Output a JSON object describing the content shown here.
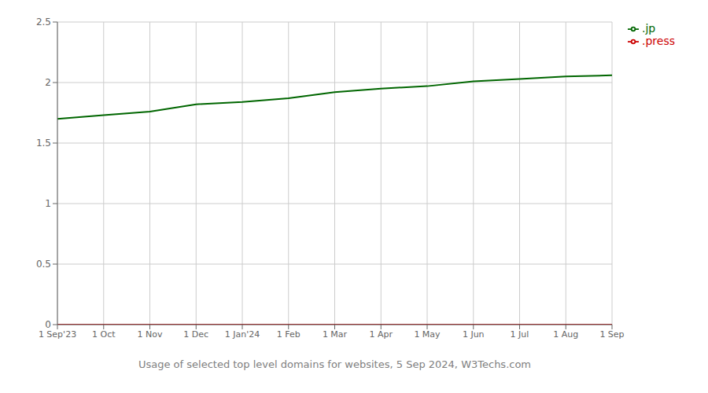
{
  "chart_data": {
    "type": "line",
    "xlabel": "Usage of selected top level domains for websites, 5 Sep 2024, W3Techs.com",
    "categories": [
      "1 Sep'23",
      "1 Oct",
      "1 Nov",
      "1 Dec",
      "1 Jan'24",
      "1 Feb",
      "1 Mar",
      "1 Apr",
      "1 May",
      "1 Jun",
      "1 Jul",
      "1 Aug",
      "1 Sep"
    ],
    "series": [
      {
        "name": ".jp",
        "color": "#006600",
        "values": [
          1.7,
          1.73,
          1.76,
          1.82,
          1.84,
          1.87,
          1.92,
          1.95,
          1.97,
          2.01,
          2.03,
          2.05,
          2.06
        ]
      },
      {
        "name": ".press",
        "color": "#cc0000",
        "values": [
          0.0,
          0.0,
          0.0,
          0.0,
          0.0,
          0.0,
          0.0,
          0.0,
          0.0,
          0.0,
          0.0,
          0.0,
          0.0
        ]
      }
    ],
    "ylim": [
      0,
      2.5
    ],
    "yticks": [
      0,
      0.5,
      1,
      1.5,
      2,
      2.5
    ],
    "grid": true,
    "legend": "right"
  }
}
